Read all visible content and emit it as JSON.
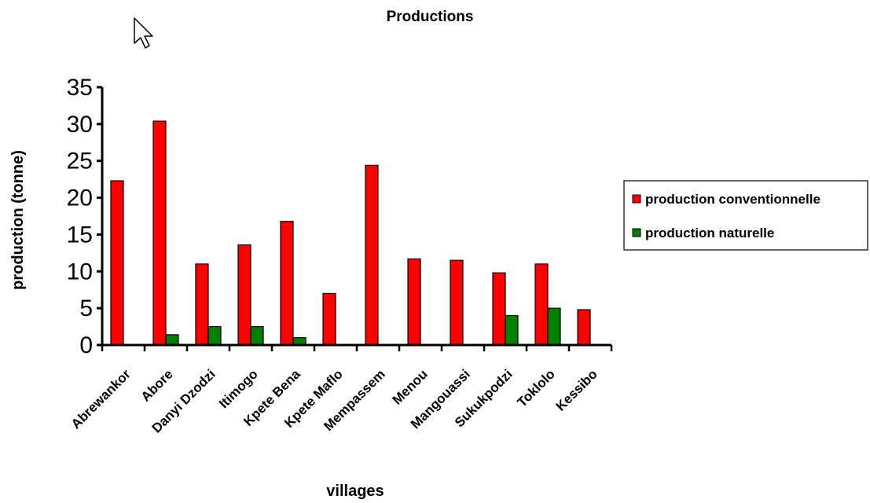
{
  "chart_data": {
    "type": "bar",
    "title": "Productions",
    "xlabel": "villages",
    "ylabel": "production (tonne)",
    "ylim": [
      0,
      35
    ],
    "yticks": [
      "0",
      "5",
      "10",
      "15",
      "20",
      "25",
      "30",
      "35"
    ],
    "categories": [
      "Abrewankor",
      "Abore",
      "Danyi Dzodzi",
      "Itimogo",
      "Kpete Bena",
      "Kpete Maflo",
      "Mempassem",
      "Menou",
      "Mangouassi",
      "Sukukpodzi",
      "Toklolo",
      "Kessibo"
    ],
    "series": [
      {
        "name": "production conventionnelle",
        "color": "#ff0000",
        "values": [
          22.3,
          30.4,
          11.0,
          13.6,
          16.8,
          7.0,
          24.4,
          11.7,
          11.5,
          9.8,
          11.0,
          4.8
        ]
      },
      {
        "name": "production naturelle",
        "color": "#008000",
        "values": [
          0,
          1.4,
          2.5,
          2.5,
          1.0,
          0,
          0,
          0,
          0,
          4.0,
          5.0,
          0
        ]
      }
    ],
    "grid": false,
    "legend_position": "right"
  },
  "cursor_icon": "mouse-pointer-icon"
}
